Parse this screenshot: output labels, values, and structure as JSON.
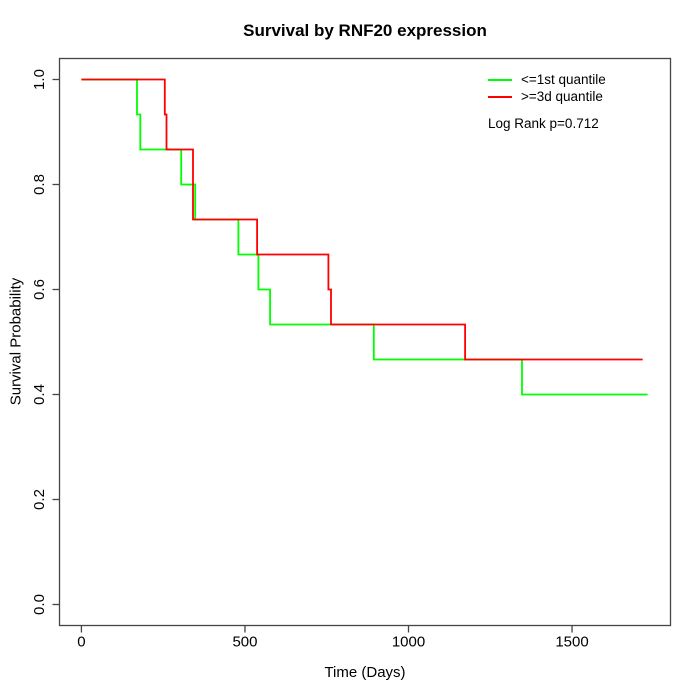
{
  "chart_data": {
    "type": "line",
    "subtype": "kaplan-meier-survival-step",
    "title": "Survival by RNF20 expression",
    "xlabel": "Time (Days)",
    "ylabel": "Survival Probability",
    "x_ticks": [
      0,
      500,
      1000,
      1500
    ],
    "x_tick_labels": [
      "0",
      "500",
      "1000",
      "1500"
    ],
    "y_ticks": [
      0,
      0.2,
      0.4,
      0.6,
      0.8,
      1
    ],
    "y_tick_labels": [
      "0.0",
      "0.2",
      "0.4",
      "0.6",
      "0.8",
      "1.0"
    ],
    "x_range": [
      -67,
      1801
    ],
    "y_range": [
      -0.04,
      1.04
    ],
    "grid": false,
    "legend_position": "top-right",
    "legend_annotation": "Log Rank p=0.712",
    "series": [
      {
        "name": "<=1st quantile",
        "color": "#00ff00",
        "steps": [
          [
            0,
            1
          ],
          [
            170,
            1
          ],
          [
            170,
            0.9333
          ],
          [
            180,
            0.9333
          ],
          [
            180,
            0.8667
          ],
          [
            305,
            0.8667
          ],
          [
            305,
            0.8
          ],
          [
            348,
            0.8
          ],
          [
            348,
            0.7333
          ],
          [
            480,
            0.7333
          ],
          [
            480,
            0.6667
          ],
          [
            541,
            0.6667
          ],
          [
            541,
            0.6
          ],
          [
            577,
            0.6
          ],
          [
            577,
            0.5333
          ],
          [
            894,
            0.5333
          ],
          [
            894,
            0.4667
          ],
          [
            1347,
            0.4667
          ],
          [
            1347,
            0.4
          ],
          [
            1731,
            0.4
          ]
        ]
      },
      {
        "name": ">=3d quantile",
        "color": "#ff0000",
        "steps": [
          [
            0,
            1
          ],
          [
            255,
            1
          ],
          [
            255,
            0.9333
          ],
          [
            260,
            0.9333
          ],
          [
            260,
            0.8667
          ],
          [
            341,
            0.8667
          ],
          [
            341,
            0.7333
          ],
          [
            537,
            0.7333
          ],
          [
            537,
            0.6667
          ],
          [
            755,
            0.6667
          ],
          [
            755,
            0.6
          ],
          [
            763,
            0.6
          ],
          [
            763,
            0.5333
          ],
          [
            1173,
            0.5333
          ],
          [
            1173,
            0.4667
          ],
          [
            1716,
            0.4667
          ]
        ]
      }
    ]
  }
}
